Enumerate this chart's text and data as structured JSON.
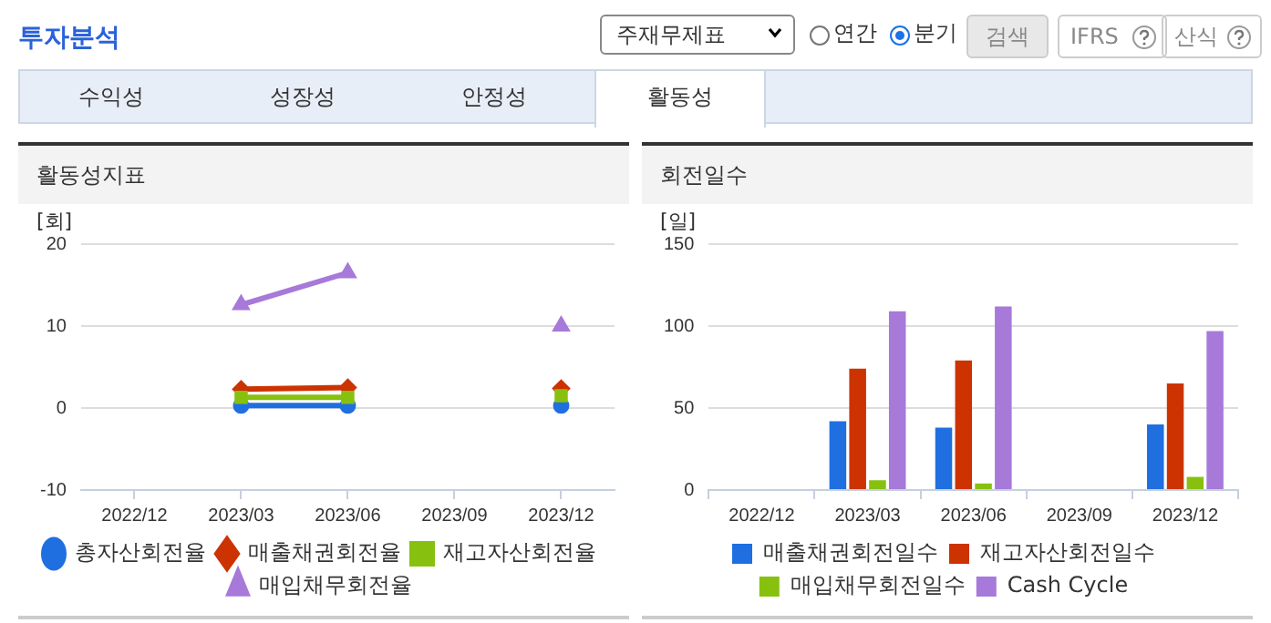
{
  "chart_data": [
    {
      "type": "other",
      "title": "투자분석",
      "annotations": [
        "주재무제표",
        "연간",
        "분기",
        "검색",
        "IFRS",
        "산식",
        "수익성",
        "성장성",
        "안정성",
        "활동성"
      ]
    },
    {
      "type": "line",
      "title": "활동성지표",
      "ylabel": "[회]",
      "categories": [
        "2022/12",
        "2023/03",
        "2023/06",
        "2023/09",
        "2023/12"
      ],
      "series": [
        {
          "name": "총자산회전율",
          "color": "#1f6fe0",
          "marker": "circle",
          "values": [
            null,
            0.3,
            0.3,
            null,
            0.3
          ]
        },
        {
          "name": "매출채권회전율",
          "color": "#cc3300",
          "marker": "diamond",
          "values": [
            null,
            2.3,
            2.5,
            null,
            2.4
          ]
        },
        {
          "name": "재고자산회전율",
          "color": "#88c010",
          "marker": "square",
          "values": [
            null,
            1.3,
            1.3,
            null,
            1.5
          ]
        },
        {
          "name": "매입채무회전율",
          "color": "#a779d9",
          "marker": "triangle",
          "values": [
            null,
            12.6,
            16.5,
            null,
            10.0
          ]
        }
      ],
      "ylim": [
        -10,
        20
      ],
      "yticks": [
        -10,
        0,
        10,
        20
      ],
      "grid": "y",
      "legend": "bottom"
    },
    {
      "type": "bar",
      "title": "회전일수",
      "ylabel": "[일]",
      "categories": [
        "2022/12",
        "2023/03",
        "2023/06",
        "2023/09",
        "2023/12"
      ],
      "series": [
        {
          "name": "매출채권회전일수",
          "color": "#1f6fe0",
          "values": [
            null,
            42,
            38,
            null,
            40
          ]
        },
        {
          "name": "재고자산회전일수",
          "color": "#cc3300",
          "values": [
            null,
            74,
            79,
            null,
            65
          ]
        },
        {
          "name": "매입채무회전일수",
          "color": "#88c010",
          "values": [
            null,
            6,
            4,
            null,
            8
          ]
        },
        {
          "name": "Cash Cycle",
          "color": "#a779d9",
          "values": [
            null,
            109,
            112,
            null,
            97
          ]
        }
      ],
      "ylim": [
        0,
        150
      ],
      "yticks": [
        0,
        50,
        100,
        150
      ],
      "grid": "y",
      "legend": "bottom"
    }
  ]
}
